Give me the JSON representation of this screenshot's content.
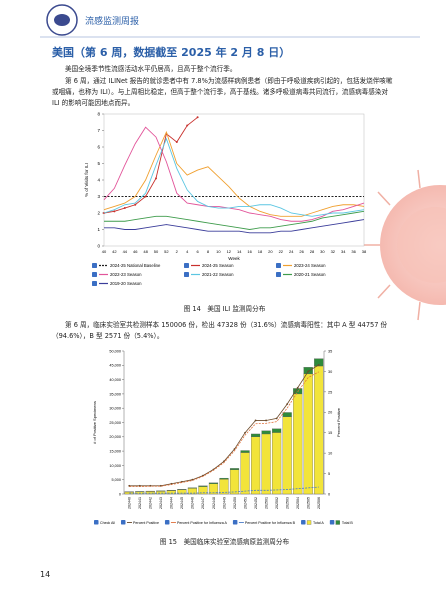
{
  "header": {
    "title": "流感监测周报"
  },
  "section_title": "美国（第 6 周，数据截至 2025 年 2 月 8 日）",
  "paragraphs": [
    "美国全境季节性流感活动水平仍居高，且高于整个流行季。",
    "第 6 周，通过 ILINet 报告的就诊患者中有 7.8%为流感样病例患者（即由于呼吸道疾病引起的，包括发烧伴咳嗽或咽痛，也称为 ILI）。与上周相比稳定，但高于整个流行季，高于基线。诸多呼吸道病毒共同流行，流感病毒感染对 ILI 的影响可能因地点而异。",
    "第 6 周，临床实验室共检测样本 150006 份，检出 47328 份（31.6%）流感病毒阳性：其中 A 型 44757 份（94.6%），B 型 2571 份（5.4%）。"
  ],
  "captions": [
    "图 14　美国 ILI 监测周分布",
    "图 15　美国临床实验室流感病原监测周分布"
  ],
  "page_number": "14",
  "chart_data": [
    {
      "type": "line",
      "ylabel": "% of Visits for ILI",
      "xlabel": "Week",
      "categories": [
        40,
        42,
        44,
        46,
        48,
        50,
        52,
        2,
        4,
        6,
        8,
        10,
        12,
        14,
        16,
        18,
        20,
        22,
        24,
        26,
        28,
        30,
        32,
        34,
        36,
        38
      ],
      "ylim": [
        0,
        8
      ],
      "yticks": [
        0,
        1,
        2,
        3,
        4,
        5,
        6,
        7,
        8
      ],
      "series": [
        {
          "name": "2024-25 National Baseline",
          "color": "#222222",
          "dash": true,
          "values": [
            3,
            3,
            3,
            3,
            3,
            3,
            3,
            3,
            3,
            3,
            3,
            3,
            3,
            3,
            3,
            3,
            3,
            3,
            3,
            3,
            3,
            3,
            3,
            3,
            3,
            3
          ]
        },
        {
          "name": "2024-25 Season",
          "color": "#c8302c",
          "marker": true,
          "values": [
            2.0,
            2.1,
            2.3,
            2.5,
            3.0,
            4.1,
            6.8,
            6.3,
            7.3,
            7.8,
            null,
            null,
            null,
            null,
            null,
            null,
            null,
            null,
            null,
            null,
            null,
            null,
            null,
            null,
            null,
            null
          ]
        },
        {
          "name": "2023-24 Season",
          "color": "#f0a030",
          "values": [
            2.2,
            2.4,
            2.6,
            3.0,
            4.0,
            5.5,
            6.9,
            5.0,
            4.3,
            4.6,
            4.8,
            4.2,
            3.6,
            2.9,
            2.4,
            2.1,
            1.9,
            1.8,
            1.8,
            1.8,
            2.0,
            2.2,
            2.4,
            2.5,
            2.5,
            2.4
          ]
        },
        {
          "name": "2022-23 Season",
          "color": "#e2559a",
          "values": [
            2.8,
            3.5,
            4.9,
            6.2,
            7.2,
            6.6,
            5.1,
            3.2,
            2.6,
            2.5,
            2.4,
            2.4,
            2.3,
            2.2,
            2.0,
            1.9,
            1.8,
            1.6,
            1.5,
            1.5,
            1.6,
            1.8,
            2.1,
            2.2,
            2.4,
            2.6
          ]
        },
        {
          "name": "2021-22 Season",
          "color": "#5cc6e2",
          "values": [
            2.0,
            2.2,
            2.5,
            2.6,
            3.2,
            4.9,
            6.5,
            4.7,
            3.4,
            2.7,
            2.4,
            2.3,
            2.3,
            2.4,
            2.4,
            2.5,
            2.5,
            2.3,
            2.0,
            1.9,
            1.8,
            1.9,
            2.0,
            2.0,
            2.1,
            2.2
          ]
        },
        {
          "name": "2020-21 Season",
          "color": "#3f9c4c",
          "values": [
            1.5,
            1.5,
            1.5,
            1.6,
            1.7,
            1.8,
            1.8,
            1.7,
            1.6,
            1.5,
            1.4,
            1.3,
            1.2,
            1.1,
            1.0,
            1.1,
            1.1,
            1.2,
            1.3,
            1.4,
            1.5,
            1.7,
            1.8,
            1.9,
            2.0,
            2.1
          ]
        },
        {
          "name": "2019-20 Season",
          "color": "#3b3d9a",
          "values": [
            1.1,
            1.1,
            1.0,
            1.0,
            1.1,
            1.2,
            1.3,
            1.2,
            1.1,
            1.0,
            0.9,
            0.9,
            0.9,
            0.9,
            0.8,
            0.8,
            0.8,
            0.9,
            0.9,
            1.0,
            1.1,
            1.2,
            1.3,
            1.4,
            1.5,
            1.6
          ]
        }
      ]
    },
    {
      "type": "combo",
      "ylabel": "# of Positive Specimens",
      "y2label": "Percent Positive",
      "legend_extra": "Check All",
      "categories": [
        "202440",
        "202441",
        "202442",
        "202443",
        "202444",
        "202445",
        "202446",
        "202447",
        "202448",
        "202449",
        "202450",
        "202451",
        "202452",
        "202501",
        "202502",
        "202503",
        "202504",
        "202505",
        "202506"
      ],
      "ylim": [
        0,
        50000
      ],
      "yticks": [
        0,
        {
          "value": 5000,
          "label": "5,000"
        },
        {
          "value": 10000,
          "label": "10,000"
        },
        {
          "value": 15000,
          "label": "15,000"
        },
        {
          "value": 20000,
          "label": "20,000"
        },
        {
          "value": 25000,
          "label": "25,000"
        },
        {
          "value": 30000,
          "label": "30,000"
        },
        {
          "value": 35000,
          "label": "35,000"
        },
        {
          "value": 40000,
          "label": "40,000"
        },
        {
          "value": 45000,
          "label": "45,000"
        },
        {
          "value": 50000,
          "label": "50,000"
        }
      ],
      "y2lim": [
        0,
        35
      ],
      "y2ticks": [
        0,
        5,
        10,
        15,
        20,
        25,
        30,
        35
      ],
      "series": [
        {
          "name": "Percent Positive",
          "kind": "line",
          "axis": "y2",
          "color": "#6b4a2a",
          "marker": true,
          "values": [
            2,
            2,
            2,
            2,
            2.5,
            3,
            3.5,
            4.5,
            6,
            8,
            11,
            15,
            18,
            18,
            18.5,
            22,
            26,
            30,
            31.6
          ]
        },
        {
          "name": "Percent Positive for Influenza A",
          "kind": "line",
          "axis": "y2",
          "color": "#e0703a",
          "dash": true,
          "values": [
            1.8,
            1.8,
            1.9,
            1.9,
            2.3,
            2.8,
            3.3,
            4.3,
            5.8,
            7.7,
            10.6,
            14.4,
            17.2,
            17.3,
            17.7,
            21,
            25,
            28.5,
            29.9
          ]
        },
        {
          "name": "Percent Positive for Influenza B",
          "kind": "line",
          "axis": "y2",
          "color": "#4a7cc8",
          "dash": true,
          "values": [
            0.2,
            0.2,
            0.2,
            0.2,
            0.2,
            0.2,
            0.2,
            0.3,
            0.3,
            0.4,
            0.5,
            0.7,
            0.9,
            0.9,
            1.0,
            1.1,
            1.3,
            1.5,
            1.7
          ]
        },
        {
          "name": "Total A",
          "kind": "bar",
          "color": "#f2e43a",
          "values": [
            700,
            800,
            900,
            1000,
            1200,
            1500,
            2000,
            2600,
            3600,
            5200,
            8500,
            14500,
            20000,
            21000,
            21500,
            27000,
            35000,
            42000,
            44757
          ]
        },
        {
          "name": "Total B",
          "kind": "bar",
          "color": "#2f8a3a",
          "values": [
            100,
            100,
            120,
            130,
            150,
            170,
            200,
            250,
            300,
            350,
            450,
            700,
            1000,
            1100,
            1300,
            1500,
            1900,
            2300,
            2571
          ]
        }
      ]
    }
  ]
}
